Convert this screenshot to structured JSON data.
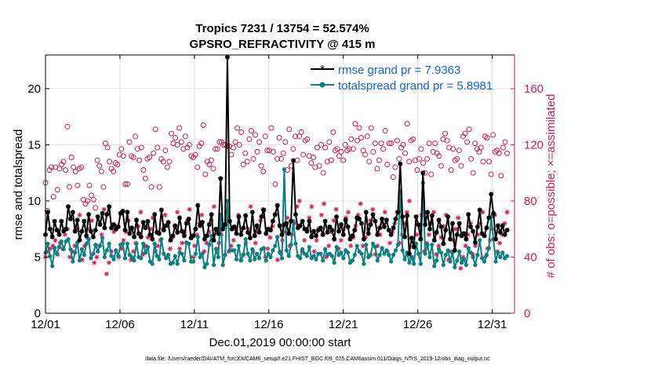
{
  "chart_data": {
    "type": "line",
    "title_line1": "Tropics 7231 / 13754 = 52.574%",
    "title_line2": "GPSRO_REFRACTIVITY @ 415 m",
    "xlabel": "Dec.01,2019 00:00:00 start",
    "ylabel_left": "rmse and totalspread",
    "ylabel_right": "# of obs: o=possible; ×=assimilated",
    "footnote": "data file: /Users/raeder/DAI/ATM_forcXX/CAM6_setup/f.e21.FHIST_BGC.f09_025.CAM6assim.011/Diags_NTrS_2019-12/obs_diag_output.nc",
    "x_range_days": [
      1,
      32.5
    ],
    "x_ticks": [
      1,
      6,
      11,
      16,
      21,
      26,
      31
    ],
    "x_tick_labels": [
      "12/01",
      "12/06",
      "12/11",
      "12/16",
      "12/21",
      "12/26",
      "12/31"
    ],
    "ylim_left": [
      0,
      23
    ],
    "y_ticks_left": [
      0,
      5,
      10,
      15,
      20
    ],
    "y_tick_labels_left": [
      "0",
      "5",
      "10",
      "15",
      "20"
    ],
    "ylim_right": [
      0,
      184
    ],
    "y_ticks_right": [
      0,
      40,
      80,
      120,
      160
    ],
    "y_tick_labels_right": [
      "0",
      "40",
      "80",
      "120",
      "160"
    ],
    "colors": {
      "rmse": "#000000",
      "spread": "#0a8080",
      "obs": "#d41a5c",
      "legend_text": "#1166dd",
      "grid": "#e0e0e0"
    },
    "series": [
      {
        "name": "rmse",
        "legend": "rmse grand pr = 7.9363",
        "values": [
          7.0,
          9.0,
          7.5,
          6.8,
          8.2,
          7.4,
          7.0,
          8.2,
          7.3,
          7.5,
          9.5,
          8.4,
          9.0,
          7.3,
          8.3,
          6.5,
          7.3,
          8.2,
          6.9,
          8.8,
          7.3,
          6.8,
          7.4,
          8.6,
          7.9,
          8.9,
          7.6,
          8.8,
          9.5,
          7.6,
          7.9,
          7.5,
          7.7,
          8.9,
          9.1,
          7.4,
          9.0,
          7.1,
          7.6,
          6.8,
          8.3,
          7.1,
          6.8,
          8.1,
          7.6,
          8.2,
          7.0,
          6.6,
          8.8,
          7.2,
          7.1,
          9.2,
          7.4,
          7.8,
          8.1,
          6.5,
          6.9,
          7.8,
          7.2,
          8.5,
          7.3,
          6.9,
          8.0,
          8.4,
          6.7,
          6.9,
          7.5,
          9.6,
          7.8,
          8.1,
          6.6,
          6.9,
          7.9,
          8.8,
          6.5,
          7.5,
          7.1,
          12.0,
          7.5,
          7.9,
          22.8,
          8.2,
          7.5,
          7.7,
          7.1,
          8.6,
          7.0,
          7.6,
          8.7,
          7.2,
          6.7,
          9.0,
          6.9,
          7.8,
          7.2,
          8.6,
          9.2,
          7.1,
          7.5,
          7.4,
          8.2,
          8.8,
          9.6,
          7.8,
          7.0,
          7.9,
          8.0,
          7.1,
          8.2,
          13.6,
          8.8,
          7.6,
          7.8,
          8.2,
          7.5,
          7.3,
          8.2,
          6.8,
          7.3,
          6.9,
          7.4,
          7.6,
          7.0,
          8.2,
          7.2,
          7.7,
          7.4,
          6.6,
          8.6,
          7.3,
          7.9,
          7.0,
          8.3,
          7.7,
          6.6,
          6.9,
          7.4,
          8.5,
          8.4,
          8.0,
          6.6,
          9.0,
          7.1,
          7.9,
          8.8,
          8.2,
          7.0,
          7.6,
          8.4,
          7.7,
          8.3,
          7.4,
          7.0,
          7.6,
          8.4,
          9.0,
          13.3,
          8.6,
          6.8,
          8.7,
          5.3,
          6.7,
          5.9,
          8.6,
          7.9,
          6.6,
          12.5,
          7.9,
          9.0,
          7.5,
          8.7,
          6.5,
          7.2,
          8.3,
          7.7,
          6.2,
          7.4,
          8.6,
          6.6,
          8.0,
          5.6,
          7.0,
          8.0,
          6.9,
          7.1,
          6.6,
          8.8,
          7.7,
          7.3,
          6.3,
          7.7,
          9.2,
          7.1,
          6.9,
          7.6,
          8.5,
          10.6,
          8.9,
          6.6,
          7.8,
          7.2,
          7.8,
          7.0,
          7.4
        ]
      },
      {
        "name": "totalspread",
        "legend": "totalspread grand pr = 5.8981",
        "values": [
          5.4,
          6.2,
          5.1,
          4.2,
          5.8,
          5.3,
          5.9,
          6.4,
          5.7,
          6.4,
          6.6,
          5.7,
          4.6,
          5.4,
          6.3,
          4.7,
          5.7,
          5.2,
          6.2,
          6.6,
          4.9,
          5.3,
          6.1,
          5.5,
          6.0,
          6.7,
          5.0,
          5.6,
          6.2,
          5.1,
          4.8,
          5.6,
          5.1,
          6.1,
          6.2,
          4.9,
          6.2,
          5.2,
          5.0,
          4.7,
          6.2,
          5.0,
          4.9,
          6.2,
          5.4,
          5.9,
          4.6,
          4.4,
          6.2,
          5.1,
          4.8,
          6.6,
          5.3,
          4.9,
          5.2,
          4.4,
          4.5,
          5.1,
          4.4,
          5.4,
          5.3,
          4.7,
          6.3,
          6.2,
          4.6,
          4.6,
          5.3,
          6.8,
          5.0,
          5.3,
          4.1,
          4.4,
          6.1,
          6.9,
          4.3,
          5.7,
          5.0,
          8.8,
          4.3,
          5.2,
          10.0,
          5.6,
          5.6,
          5.6,
          4.8,
          6.0,
          4.7,
          5.2,
          6.6,
          5.3,
          4.7,
          5.7,
          4.8,
          5.3,
          4.9,
          5.7,
          5.8,
          4.7,
          5.3,
          5.0,
          5.6,
          6.0,
          6.8,
          5.4,
          4.9,
          12.8,
          5.6,
          5.1,
          6.1,
          8.2,
          6.2,
          5.1,
          4.9,
          5.7,
          5.3,
          5.1,
          5.9,
          4.9,
          5.1,
          4.8,
          5.3,
          5.3,
          4.7,
          5.7,
          5.2,
          5.3,
          5.1,
          4.5,
          5.9,
          5.2,
          5.4,
          4.9,
          5.6,
          5.4,
          4.5,
          4.7,
          5.2,
          6.0,
          5.5,
          5.3,
          4.4,
          6.1,
          5.0,
          5.2,
          6.2,
          5.9,
          4.7,
          5.2,
          5.8,
          5.3,
          5.6,
          5.2,
          4.6,
          5.2,
          5.6,
          6.1,
          10.9,
          5.6,
          4.8,
          5.4,
          4.5,
          5.0,
          4.4,
          6.2,
          5.3,
          4.4,
          11.6,
          5.3,
          6.1,
          5.0,
          6.1,
          4.2,
          4.7,
          5.7,
          5.4,
          4.3,
          5.2,
          5.6,
          4.6,
          5.4,
          4.1,
          4.7,
          5.5,
          4.5,
          4.8,
          4.3,
          5.8,
          5.4,
          5.0,
          4.3,
          5.2,
          6.5,
          4.9,
          4.6,
          5.2,
          5.8,
          8.6,
          6.6,
          4.6,
          5.4,
          5.0,
          5.4,
          4.9,
          5.1
        ]
      },
      {
        "name": "obs_possible",
        "values": [
          93,
          73,
          102,
          104,
          83,
          104,
          88,
          103,
          106,
          108,
          102,
          133,
          90,
          111,
          104,
          101,
          91,
          103,
          104,
          81,
          78,
          80,
          91,
          84,
          81,
          75,
          109,
          105,
          101,
          90,
          121,
          118,
          108,
          103,
          101,
          107,
          106,
          113,
          117,
          112,
          92,
          92,
          122,
          112,
          111,
          126,
          117,
          109,
          118,
          102,
          96,
          110,
          111,
          90,
          114,
          131,
          118,
          90,
          110,
          108,
          116,
          104,
          108,
          128,
          121,
          125,
          120,
          132,
          122,
          117,
          126,
          118,
          120,
          112,
          111,
          113,
          104,
          119,
          121,
          134,
          99,
          108,
          106,
          109,
          103,
          117,
          117,
          122,
          122,
          120,
          120,
          119,
          119,
          113,
          118,
          122,
          132,
          120,
          129,
          106,
          114,
          108,
          124,
          130,
          110,
          127,
          115,
          122,
          105,
          101,
          126,
          116,
          116,
          132,
          115,
          92,
          110,
          125,
          110,
          114,
          122,
          102,
          131,
          105,
          117,
          126,
          109,
          126,
          129,
          113,
          123,
          124,
          112,
          107,
          111,
          104,
          118,
          105,
          120,
          100,
          118,
          108,
          122,
          109,
          129,
          116,
          117,
          112,
          115,
          109,
          120,
          116,
          117,
          124,
          117,
          135,
          123,
          132,
          125,
          116,
          113,
          126,
          108,
          132,
          115,
          121,
          103,
          109,
          121,
          117,
          130,
          106,
          121,
          121,
          97,
          104,
          123,
          110,
          118,
          120,
          114,
          135,
          108,
          123,
          124,
          109,
          102,
          110,
          117,
          107,
          100,
          110,
          121,
          99,
          115,
          121,
          114,
          112,
          105,
          124,
          128,
          123,
          118,
          102,
          117,
          109,
          110,
          116,
          105,
          126,
          128,
          122,
          131,
          110,
          100,
          121,
          117,
          115,
          118,
          108,
          126,
          125,
          108,
          99,
          127,
          115,
          116,
          114,
          98,
          118,
          122,
          114
        ]
      },
      {
        "name": "obs_assimilated",
        "values": [
          40,
          44,
          46,
          48,
          52,
          42,
          50,
          46,
          56,
          60,
          40,
          44,
          48,
          60,
          70,
          38,
          48,
          54,
          60,
          66,
          36,
          40,
          48,
          56,
          74,
          28,
          36,
          44,
          58,
          62,
          40,
          46,
          52,
          58,
          66,
          38,
          44,
          50,
          62,
          72,
          42,
          48,
          54,
          60,
          68,
          44,
          48,
          52,
          60,
          70,
          40,
          46,
          54,
          62,
          72,
          46,
          50,
          58,
          66,
          74,
          40,
          48,
          56,
          64,
          70,
          44,
          50,
          58,
          66,
          76,
          46,
          50,
          56,
          62,
          72,
          44,
          48,
          52,
          60,
          70,
          38,
          42,
          50,
          60,
          76,
          44,
          50,
          58,
          66,
          74,
          40,
          46,
          54,
          62,
          70,
          38,
          44,
          52,
          58,
          68,
          48,
          56,
          64,
          76,
          80,
          44,
          52,
          60,
          68,
          76,
          44,
          52,
          60,
          70,
          78,
          40,
          48,
          58,
          66,
          74,
          46,
          52,
          60,
          68,
          72,
          48,
          54,
          62,
          70,
          78,
          48,
          54,
          60,
          66,
          74,
          42,
          48,
          56,
          64,
          72,
          44,
          50,
          58,
          64,
          72,
          50,
          56,
          64,
          72,
          80,
          40,
          48,
          56,
          62,
          70,
          44,
          50,
          56,
          64,
          72,
          42,
          48,
          54,
          62,
          70,
          38,
          44,
          52,
          60,
          68,
          32,
          40,
          48,
          56,
          64,
          42,
          48,
          56,
          64,
          72,
          40,
          46,
          52,
          60,
          70,
          44,
          50,
          56,
          64,
          72
        ]
      }
    ]
  }
}
